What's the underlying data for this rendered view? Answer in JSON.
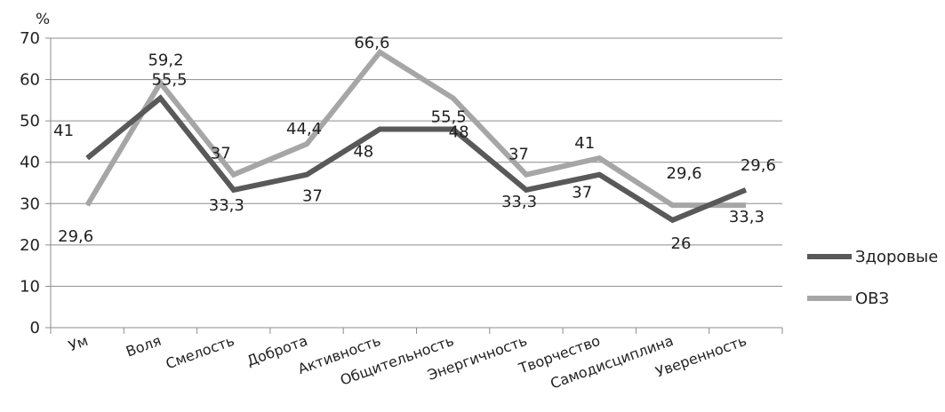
{
  "chart_data": {
    "type": "line",
    "title": "",
    "xlabel": "",
    "ylabel": "%",
    "ylim": [
      0,
      70
    ],
    "yticks": [
      0,
      10,
      20,
      30,
      40,
      50,
      60,
      70
    ],
    "grid": true,
    "legend_position": "right",
    "categories": [
      "Ум",
      "Воля",
      "Смелость",
      "Доброта",
      "Активность",
      "Общительность",
      "Энергичность",
      "Творчество",
      "Самодисциплина",
      "Уверенность"
    ],
    "series": [
      {
        "name": "Здоровые",
        "color": "#595959",
        "values": [
          41,
          55.5,
          33.3,
          37,
          48,
          48,
          33.3,
          37,
          26,
          33.3
        ],
        "labels": [
          "41",
          "55,5",
          "33,3",
          "37",
          "48",
          "48",
          "33,3",
          "37",
          "26",
          "33,3"
        ]
      },
      {
        "name": "ОВЗ",
        "color": "#a6a6a6",
        "values": [
          29.6,
          59.2,
          37,
          44.4,
          66.6,
          55.5,
          37,
          41,
          29.6,
          29.6
        ],
        "labels": [
          "29,6",
          "59,2",
          "37",
          "44,4",
          "66,6",
          "55,5",
          "37",
          "41",
          "29,6",
          "29,6"
        ]
      }
    ]
  }
}
